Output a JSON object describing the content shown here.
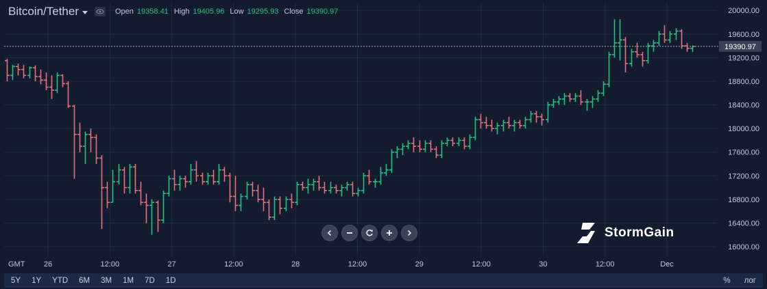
{
  "header": {
    "symbol": "Bitcoin/Tether",
    "open_label": "Open",
    "open_value": "19358.41",
    "high_label": "High",
    "high_value": "19405.96",
    "low_label": "Low",
    "low_value": "19295.93",
    "close_label": "Close",
    "close_value": "19390.97"
  },
  "colors": {
    "up": "#26c281",
    "down": "#e8717e",
    "background": "#131b2e",
    "grid": "#1f2a3f"
  },
  "chart_data": {
    "type": "ohlc",
    "timezone_label": "GMT",
    "x_ticks": [
      "26",
      "12:00",
      "27",
      "12:00",
      "28",
      "12:00",
      "29",
      "12:00",
      "30",
      "12:00",
      "Dec"
    ],
    "y_ticks": [
      "20000.00",
      "19600.00",
      "19200.00",
      "18800.00",
      "18400.00",
      "18000.00",
      "17600.00",
      "17200.00",
      "16800.00",
      "16400.00",
      "16000.00"
    ],
    "ylim": [
      15850,
      20130
    ],
    "last_price": 19390.97,
    "last_price_label": "19390.97",
    "bars": [
      [
        19150,
        19180,
        18800,
        18900
      ],
      [
        18900,
        19080,
        18820,
        19050
      ],
      [
        19050,
        19100,
        18900,
        19000
      ],
      [
        19000,
        19080,
        18850,
        18900
      ],
      [
        18900,
        19050,
        18850,
        19030
      ],
      [
        19030,
        19070,
        18800,
        18880
      ],
      [
        18880,
        19000,
        18750,
        18820
      ],
      [
        18820,
        18950,
        18650,
        18700
      ],
      [
        18700,
        18900,
        18500,
        18650
      ],
      [
        18650,
        18950,
        18600,
        18900
      ],
      [
        18900,
        18920,
        18700,
        18760
      ],
      [
        18760,
        18800,
        18350,
        18380
      ],
      [
        18380,
        18400,
        17150,
        17900
      ],
      [
        17900,
        18100,
        17600,
        17700
      ],
      [
        17700,
        17950,
        17400,
        17900
      ],
      [
        17900,
        18000,
        17600,
        17850
      ],
      [
        17850,
        17900,
        17400,
        17500
      ],
      [
        17500,
        17550,
        16300,
        17000
      ],
      [
        17000,
        17100,
        16650,
        16750
      ],
      [
        16750,
        17300,
        16750,
        17100
      ],
      [
        17100,
        17400,
        17050,
        17300
      ],
      [
        17300,
        17350,
        16900,
        17000
      ],
      [
        17000,
        17400,
        16900,
        17350
      ],
      [
        17350,
        17400,
        16900,
        16950
      ],
      [
        16950,
        17100,
        16700,
        16750
      ],
      [
        16750,
        16900,
        16400,
        16700
      ],
      [
        16700,
        16800,
        16200,
        16750
      ],
      [
        16750,
        16780,
        16250,
        16450
      ],
      [
        16450,
        16950,
        16400,
        16900
      ],
      [
        16900,
        17200,
        16850,
        17150
      ],
      [
        17150,
        17300,
        16950,
        17050
      ],
      [
        17050,
        17200,
        16950,
        17150
      ],
      [
        17150,
        17200,
        17000,
        17100
      ],
      [
        17100,
        17400,
        17050,
        17300
      ],
      [
        17300,
        17450,
        17100,
        17200
      ],
      [
        17200,
        17250,
        17050,
        17100
      ],
      [
        17100,
        17250,
        17050,
        17200
      ],
      [
        17200,
        17300,
        17050,
        17100
      ],
      [
        17100,
        17400,
        17050,
        17300
      ],
      [
        17300,
        17350,
        17100,
        17200
      ],
      [
        17200,
        17250,
        16750,
        16850
      ],
      [
        16850,
        17200,
        16600,
        16700
      ],
      [
        16700,
        16900,
        16600,
        16850
      ],
      [
        16850,
        17100,
        16800,
        17050
      ],
      [
        17050,
        17100,
        16850,
        16950
      ],
      [
        16950,
        17050,
        16750,
        16800
      ],
      [
        16800,
        17000,
        16600,
        16750
      ],
      [
        16750,
        16800,
        16450,
        16500
      ],
      [
        16500,
        16850,
        16450,
        16800
      ],
      [
        16800,
        16850,
        16550,
        16650
      ],
      [
        16650,
        16850,
        16600,
        16800
      ],
      [
        16800,
        16900,
        16650,
        16750
      ],
      [
        16750,
        17100,
        16700,
        17050
      ],
      [
        17050,
        17100,
        16950,
        17000
      ],
      [
        17000,
        17150,
        16900,
        17050
      ],
      [
        17050,
        17150,
        16950,
        17100
      ],
      [
        17100,
        17200,
        16950,
        17000
      ],
      [
        17000,
        17100,
        16900,
        16950
      ],
      [
        16950,
        17100,
        16900,
        17000
      ],
      [
        17000,
        17050,
        16900,
        16950
      ],
      [
        16950,
        17050,
        16850,
        17000
      ],
      [
        17000,
        17100,
        16950,
        17050
      ],
      [
        17050,
        17100,
        16850,
        16900
      ],
      [
        16900,
        17000,
        16850,
        16950
      ],
      [
        16950,
        17250,
        16900,
        17200
      ],
      [
        17200,
        17300,
        17050,
        17100
      ],
      [
        17100,
        17150,
        17000,
        17100
      ],
      [
        17100,
        17350,
        17050,
        17250
      ],
      [
        17250,
        17400,
        17200,
        17300
      ],
      [
        17300,
        17650,
        17250,
        17600
      ],
      [
        17600,
        17700,
        17500,
        17650
      ],
      [
        17650,
        17750,
        17550,
        17700
      ],
      [
        17700,
        17800,
        17650,
        17750
      ],
      [
        17750,
        17850,
        17600,
        17700
      ],
      [
        17700,
        17800,
        17600,
        17650
      ],
      [
        17650,
        17800,
        17600,
        17750
      ],
      [
        17750,
        17800,
        17600,
        17650
      ],
      [
        17650,
        17700,
        17500,
        17550
      ],
      [
        17550,
        17800,
        17500,
        17750
      ],
      [
        17750,
        17850,
        17700,
        17800
      ],
      [
        17800,
        17850,
        17700,
        17750
      ],
      [
        17750,
        17850,
        17700,
        17800
      ],
      [
        17800,
        17850,
        17650,
        17700
      ],
      [
        17700,
        17900,
        17650,
        17850
      ],
      [
        17850,
        18200,
        17800,
        18150
      ],
      [
        18150,
        18250,
        18000,
        18100
      ],
      [
        18100,
        18200,
        18000,
        18050
      ],
      [
        18050,
        18150,
        17950,
        18000
      ],
      [
        18000,
        18100,
        17900,
        18050
      ],
      [
        18050,
        18150,
        17950,
        18100
      ],
      [
        18100,
        18200,
        18000,
        18050
      ],
      [
        18050,
        18150,
        17950,
        18100
      ],
      [
        18100,
        18150,
        18000,
        18050
      ],
      [
        18050,
        18200,
        18000,
        18150
      ],
      [
        18150,
        18300,
        18100,
        18250
      ],
      [
        18250,
        18300,
        18100,
        18200
      ],
      [
        18200,
        18250,
        18050,
        18150
      ],
      [
        18150,
        18450,
        18100,
        18400
      ],
      [
        18400,
        18500,
        18350,
        18450
      ],
      [
        18450,
        18550,
        18400,
        18500
      ],
      [
        18500,
        18600,
        18400,
        18550
      ],
      [
        18550,
        18600,
        18450,
        18500
      ],
      [
        18500,
        18600,
        18450,
        18550
      ],
      [
        18550,
        18650,
        18400,
        18450
      ],
      [
        18450,
        18500,
        18300,
        18450
      ],
      [
        18450,
        18550,
        18350,
        18500
      ],
      [
        18500,
        18650,
        18450,
        18600
      ],
      [
        18600,
        18800,
        18550,
        18750
      ],
      [
        18750,
        19300,
        18700,
        19250
      ],
      [
        19250,
        19850,
        19200,
        19450
      ],
      [
        19450,
        19850,
        19150,
        19500
      ],
      [
        19500,
        19550,
        18950,
        19100
      ],
      [
        19100,
        19350,
        19050,
        19300
      ],
      [
        19300,
        19450,
        19200,
        19250
      ],
      [
        19250,
        19300,
        19050,
        19150
      ],
      [
        19150,
        19450,
        19100,
        19400
      ],
      [
        19400,
        19500,
        19300,
        19450
      ],
      [
        19450,
        19650,
        19400,
        19600
      ],
      [
        19600,
        19750,
        19450,
        19500
      ],
      [
        19500,
        19650,
        19450,
        19600
      ],
      [
        19600,
        19700,
        19500,
        19650
      ],
      [
        19650,
        19680,
        19350,
        19400
      ],
      [
        19400,
        19450,
        19300,
        19358
      ],
      [
        19358,
        19406,
        19296,
        19391
      ]
    ]
  },
  "toolbar": {
    "buttons": [
      {
        "name": "scroll-left-button",
        "icon": "chevron-left-icon"
      },
      {
        "name": "zoom-out-button",
        "icon": "minus-icon"
      },
      {
        "name": "reset-button",
        "icon": "refresh-icon"
      },
      {
        "name": "zoom-in-button",
        "icon": "plus-icon"
      },
      {
        "name": "scroll-right-button",
        "icon": "chevron-right-icon"
      }
    ]
  },
  "brand": {
    "name": "StormGain",
    "icon": "stormgain-logo-icon"
  },
  "ranges": [
    "5Y",
    "1Y",
    "YTD",
    "6M",
    "3M",
    "1M",
    "7D",
    "1D"
  ],
  "scale_options": [
    "%",
    "лог"
  ]
}
